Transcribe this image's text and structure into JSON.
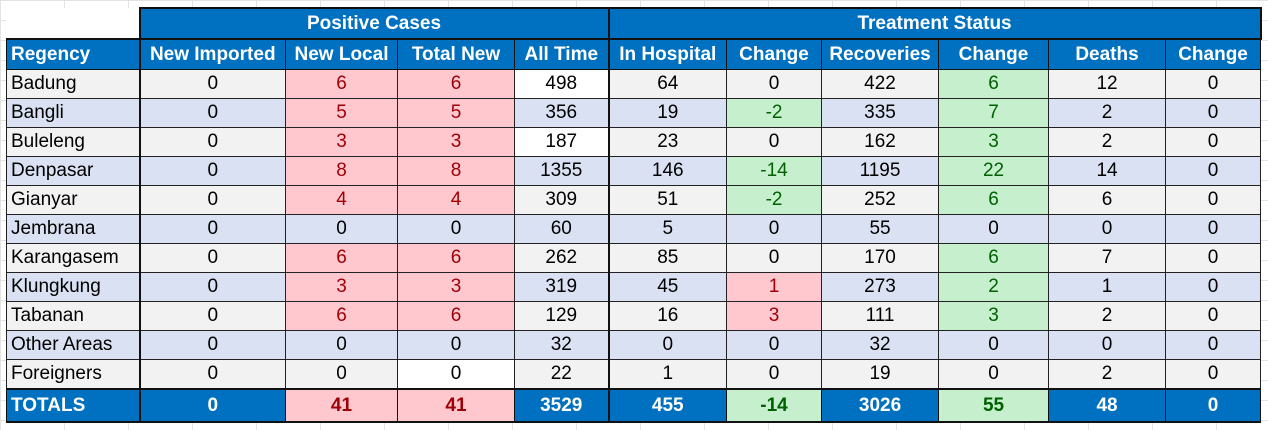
{
  "groups": {
    "positive": "Positive Cases",
    "treatment": "Treatment Status"
  },
  "headers": [
    "Regency",
    "New Imported",
    "New Local",
    "Total New",
    "All Time",
    "In Hospital",
    "Change",
    "Recoveries",
    "Change",
    "Deaths",
    "Change"
  ],
  "rows": [
    [
      "Badung",
      "0",
      "6",
      "6",
      "498",
      "64",
      "0",
      "422",
      "6",
      "12",
      "0"
    ],
    [
      "Bangli",
      "0",
      "5",
      "5",
      "356",
      "19",
      "-2",
      "335",
      "7",
      "2",
      "0"
    ],
    [
      "Buleleng",
      "0",
      "3",
      "3",
      "187",
      "23",
      "0",
      "162",
      "3",
      "2",
      "0"
    ],
    [
      "Denpasar",
      "0",
      "8",
      "8",
      "1355",
      "146",
      "-14",
      "1195",
      "22",
      "14",
      "0"
    ],
    [
      "Gianyar",
      "0",
      "4",
      "4",
      "309",
      "51",
      "-2",
      "252",
      "6",
      "6",
      "0"
    ],
    [
      "Jembrana",
      "0",
      "0",
      "0",
      "60",
      "5",
      "0",
      "55",
      "0",
      "0",
      "0"
    ],
    [
      "Karangasem",
      "0",
      "6",
      "6",
      "262",
      "85",
      "0",
      "170",
      "6",
      "7",
      "0"
    ],
    [
      "Klungkung",
      "0",
      "3",
      "3",
      "319",
      "45",
      "1",
      "273",
      "2",
      "1",
      "0"
    ],
    [
      "Tabanan",
      "0",
      "6",
      "6",
      "129",
      "16",
      "3",
      "111",
      "3",
      "2",
      "0"
    ],
    [
      "Other Areas",
      "0",
      "0",
      "0",
      "32",
      "0",
      "0",
      "32",
      "0",
      "0",
      "0"
    ],
    [
      "Foreigners",
      "0",
      "0",
      "0",
      "22",
      "1",
      "0",
      "19",
      "0",
      "2",
      "0"
    ]
  ],
  "totals": [
    "TOTALS",
    "0",
    "41",
    "41",
    "3529",
    "455",
    "-14",
    "3026",
    "55",
    "48",
    "0"
  ],
  "colors": {
    "header_blue": "#0070c0",
    "bad_fill": "#ffc7ce",
    "bad_text": "#9c0006",
    "good_fill": "#c6efce",
    "good_text": "#006100",
    "band_light": "#f2f2f2",
    "band_blue": "#d9e1f2"
  }
}
